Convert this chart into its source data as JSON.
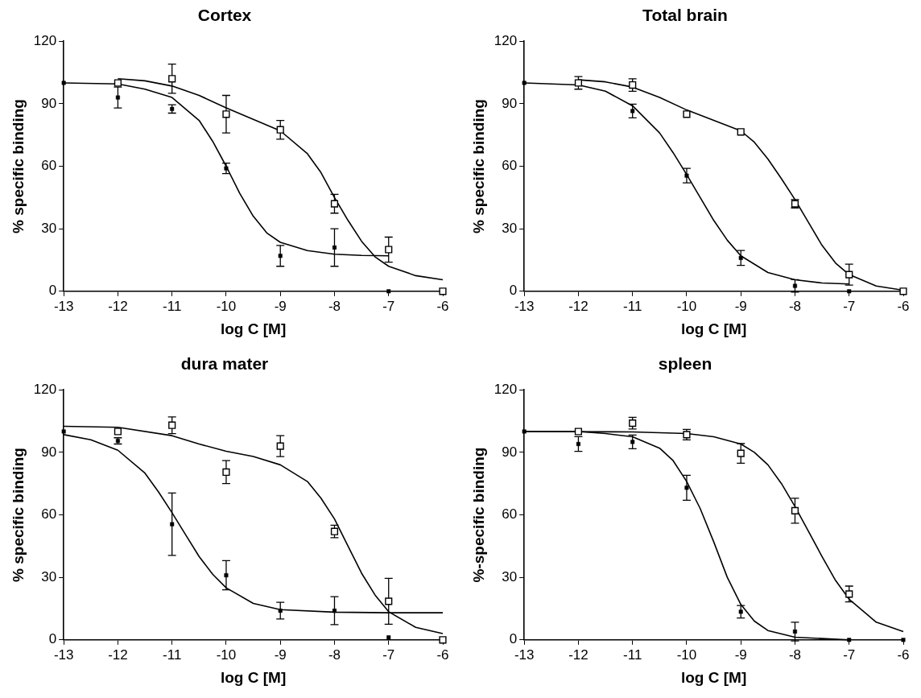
{
  "chart_data": [
    {
      "type": "scatter",
      "title": "Cortex",
      "xlabel": "log C [M]",
      "ylabel": "% specific binding",
      "xlim": [
        -13,
        -6
      ],
      "xticks": [
        -13,
        -12,
        -11,
        -10,
        -9,
        -8,
        -7,
        -6
      ],
      "ylim": [
        0,
        120
      ],
      "yticks": [
        0,
        30,
        60,
        90,
        120
      ],
      "grid": false,
      "legend": false,
      "series": [
        {
          "type": "scatter",
          "marker": "square",
          "color": "#000000",
          "x": [
            -13,
            -12,
            -11,
            -10,
            -9,
            -8,
            -7
          ],
          "values": [
            100,
            93,
            87.5,
            59,
            17,
            21,
            0
          ],
          "errors": [
            null,
            5,
            2,
            2.5,
            5,
            9,
            null
          ]
        },
        {
          "type": "scatter",
          "marker": "square",
          "color": "#ffffff",
          "x": [
            -12,
            -11,
            -10,
            -9,
            -8,
            -7,
            -6
          ],
          "values": [
            100,
            102,
            85,
            77.5,
            42,
            20,
            0
          ],
          "errors": [
            null,
            7,
            9,
            4.5,
            4.5,
            6,
            null
          ]
        },
        {
          "type": "line",
          "marker": "none",
          "color": "#000000",
          "x": [
            -13,
            -12,
            -11.5,
            -11,
            -10.5,
            -10.25,
            -10,
            -9.75,
            -9.5,
            -9.25,
            -9,
            -8.5,
            -8,
            -7.5,
            -7
          ],
          "values": [
            100,
            99.5,
            97,
            93,
            82,
            72,
            60,
            47,
            36,
            28,
            23.5,
            19.5,
            17.8,
            17.2,
            17
          ]
        },
        {
          "type": "line",
          "marker": "none",
          "color": "#000000",
          "x": [
            -12,
            -11.5,
            -11,
            -10.5,
            -10,
            -9.5,
            -9,
            -8.5,
            -8.25,
            -8,
            -7.75,
            -7.5,
            -7.25,
            -7,
            -6.5,
            -6
          ],
          "values": [
            102,
            101,
            98.5,
            94,
            88,
            82.5,
            77,
            66,
            57,
            45,
            34,
            24,
            16.5,
            12,
            7.5,
            5.5
          ]
        }
      ]
    },
    {
      "type": "scatter",
      "title": "Total brain",
      "xlabel": "log C [M]",
      "ylabel": "% specific binding",
      "xlim": [
        -13,
        -6
      ],
      "xticks": [
        -13,
        -12,
        -11,
        -10,
        -9,
        -8,
        -7,
        -6
      ],
      "ylim": [
        0,
        120
      ],
      "yticks": [
        0,
        30,
        60,
        90,
        120
      ],
      "grid": false,
      "legend": false,
      "series": [
        {
          "type": "scatter",
          "marker": "square",
          "color": "#000000",
          "x": [
            -13,
            -12,
            -11,
            -10,
            -9,
            -8,
            -7
          ],
          "values": [
            100,
            null,
            86.5,
            55.5,
            16,
            2.6,
            0
          ],
          "errors": [
            null,
            null,
            3.3,
            3.5,
            3.6,
            3,
            null
          ]
        },
        {
          "type": "scatter",
          "marker": "square",
          "color": "#ffffff",
          "x": [
            -12,
            -11,
            -10,
            -9,
            -8,
            -7,
            -6
          ],
          "values": [
            100,
            99,
            85,
            76.5,
            42,
            8,
            0
          ],
          "errors": [
            3,
            3,
            null,
            null,
            2,
            5,
            null
          ]
        },
        {
          "type": "line",
          "marker": "none",
          "color": "#000000",
          "x": [
            -13,
            -12,
            -11.5,
            -11,
            -10.5,
            -10.25,
            -10,
            -9.75,
            -9.5,
            -9.25,
            -9,
            -8.5,
            -8,
            -7.5,
            -7
          ],
          "values": [
            100,
            99,
            96,
            89,
            76,
            66.5,
            56,
            45,
            34,
            24.5,
            17,
            9,
            5.5,
            4,
            3.5
          ]
        },
        {
          "type": "line",
          "marker": "none",
          "color": "#000000",
          "x": [
            -12,
            -11.5,
            -11,
            -10.5,
            -10,
            -9.5,
            -9,
            -8.75,
            -8.5,
            -8.25,
            -8,
            -7.75,
            -7.5,
            -7.25,
            -7,
            -6.5,
            -6
          ],
          "values": [
            101.5,
            100.5,
            98,
            93,
            87,
            82,
            77,
            71.5,
            63.5,
            54,
            44,
            33,
            22,
            13.5,
            8,
            2.5,
            0.5
          ]
        }
      ]
    },
    {
      "type": "scatter",
      "title": "dura mater",
      "xlabel": "log C [M]",
      "ylabel": "% specific binding",
      "xlim": [
        -13,
        -6
      ],
      "xticks": [
        -13,
        -12,
        -11,
        -10,
        -9,
        -8,
        -7,
        -6
      ],
      "ylim": [
        0,
        120
      ],
      "yticks": [
        0,
        30,
        60,
        90,
        120
      ],
      "grid": false,
      "legend": false,
      "series": [
        {
          "type": "scatter",
          "marker": "square",
          "color": "#000000",
          "x": [
            -13,
            -12,
            -11,
            -10,
            -9,
            -8,
            -7
          ],
          "values": [
            100,
            95.5,
            55.5,
            31,
            14,
            14,
            1.2
          ],
          "errors": [
            null,
            1.5,
            15,
            7,
            4,
            6.7,
            null
          ]
        },
        {
          "type": "scatter",
          "marker": "square",
          "color": "#ffffff",
          "x": [
            -12,
            -11,
            -10,
            -9,
            -8,
            -7,
            -6
          ],
          "values": [
            100,
            103,
            80.5,
            93,
            52,
            18.5,
            0
          ],
          "errors": [
            null,
            4,
            5.5,
            5,
            3,
            11,
            null
          ]
        },
        {
          "type": "line",
          "marker": "none",
          "color": "#000000",
          "x": [
            -13,
            -12.5,
            -12,
            -11.5,
            -11.25,
            -11,
            -10.75,
            -10.5,
            -10.25,
            -10,
            -9.5,
            -9,
            -8,
            -7,
            -6
          ],
          "values": [
            98.5,
            96,
            91,
            80,
            71,
            61,
            50.5,
            40,
            31.5,
            25,
            17.5,
            14.5,
            13.3,
            13,
            13
          ]
        },
        {
          "type": "line",
          "marker": "none",
          "color": "#000000",
          "x": [
            -13,
            -12,
            -11,
            -10.5,
            -10,
            -9.5,
            -9,
            -8.5,
            -8.25,
            -8,
            -7.75,
            -7.5,
            -7.25,
            -7,
            -6.5,
            -6
          ],
          "values": [
            102.5,
            102,
            98,
            94,
            90.5,
            88,
            84,
            76,
            68,
            58,
            45,
            32,
            21.5,
            13.5,
            6,
            3
          ]
        }
      ]
    },
    {
      "type": "scatter",
      "title": "spleen",
      "xlabel": "log C [M]",
      "ylabel": "%-specific binding",
      "xlim": [
        -13,
        -6
      ],
      "xticks": [
        -13,
        -12,
        -11,
        -10,
        -9,
        -8,
        -7,
        -6
      ],
      "ylim": [
        0,
        120
      ],
      "yticks": [
        0,
        30,
        60,
        90,
        120
      ],
      "grid": false,
      "legend": false,
      "series": [
        {
          "type": "scatter",
          "marker": "square",
          "color": "#000000",
          "x": [
            -13,
            -12,
            -11,
            -10,
            -9,
            -8,
            -7,
            -6
          ],
          "values": [
            100,
            94,
            95,
            73,
            13.5,
            4,
            0,
            0
          ],
          "errors": [
            null,
            3.5,
            3.3,
            6,
            3,
            4.5,
            null,
            null
          ]
        },
        {
          "type": "scatter",
          "marker": "square",
          "color": "#ffffff",
          "x": [
            -12,
            -11,
            -10,
            -9,
            -8,
            -7
          ],
          "values": [
            100,
            104,
            98.5,
            89.5,
            62,
            22
          ],
          "errors": [
            null,
            2.8,
            2.5,
            4.7,
            6,
            3.8
          ]
        },
        {
          "type": "line",
          "marker": "none",
          "color": "#000000",
          "x": [
            -13,
            -12,
            -11.5,
            -11,
            -10.5,
            -10.25,
            -10,
            -9.75,
            -9.5,
            -9.25,
            -9,
            -8.75,
            -8.5,
            -8,
            -7
          ],
          "values": [
            100,
            100,
            99,
            97.5,
            92,
            86,
            76,
            63,
            47,
            30,
            17,
            9,
            4.5,
            1.3,
            0
          ]
        },
        {
          "type": "line",
          "marker": "none",
          "color": "#000000",
          "x": [
            -13,
            -11,
            -10,
            -9.5,
            -9,
            -8.75,
            -8.5,
            -8.25,
            -8,
            -7.75,
            -7.5,
            -7.25,
            -7,
            -6.5,
            -6
          ],
          "values": [
            100,
            99.8,
            99,
            97.5,
            94,
            90,
            84,
            75,
            64,
            52,
            40,
            28.5,
            19.5,
            8.5,
            4
          ]
        }
      ]
    }
  ]
}
